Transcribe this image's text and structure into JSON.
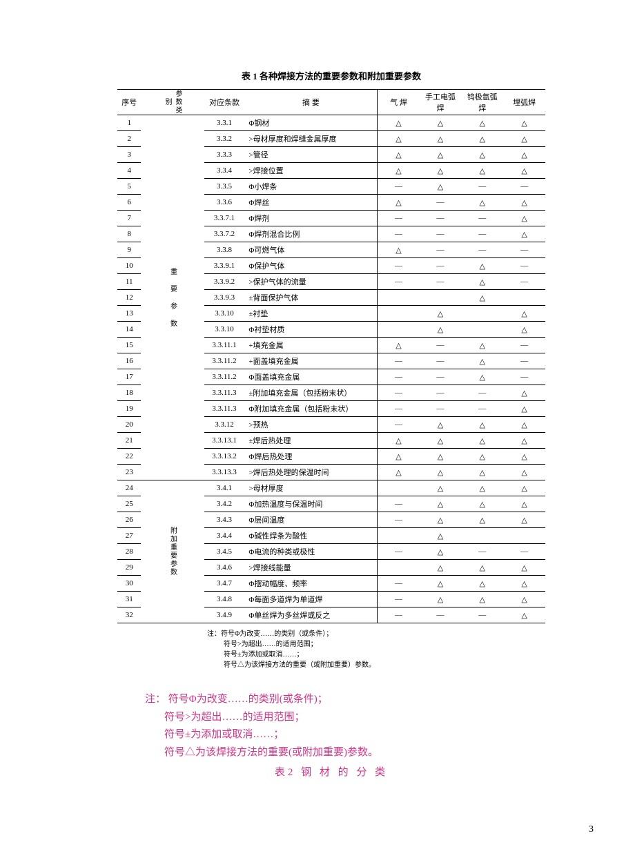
{
  "title": "表 1  各种焊接方法的重要参数和附加重要参数",
  "headers": {
    "seq": "序号",
    "cat": "参数类别",
    "ref": "对应条款",
    "desc": "摘    要",
    "m1": "气 焊",
    "m2": "手工电弧焊",
    "m3": "钨极氩弧焊",
    "m4": "埋弧焊"
  },
  "cat1": "重 要 参 数",
  "cat2": "附加重要参数",
  "rows": [
    {
      "n": "1",
      "r": "3.3.1",
      "d": "Φ钢材",
      "v": [
        "△",
        "△",
        "△",
        "△"
      ]
    },
    {
      "n": "2",
      "r": "3.3.2",
      "d": ">母材厚度和焊缝金属厚度",
      "v": [
        "△",
        "△",
        "△",
        "△"
      ]
    },
    {
      "n": "3",
      "r": "3.3.3",
      "d": ">管径",
      "v": [
        "△",
        "△",
        "△",
        "△"
      ]
    },
    {
      "n": "4",
      "r": "3.3.4",
      "d": ">焊接位置",
      "v": [
        "△",
        "△",
        "△",
        "△"
      ]
    },
    {
      "n": "5",
      "r": "3.3.5",
      "d": "Φ小焊条",
      "v": [
        "—",
        "△",
        "—",
        "—"
      ]
    },
    {
      "n": "6",
      "r": "3.3.6",
      "d": "Φ焊丝",
      "v": [
        "△",
        "—",
        "△",
        "△"
      ]
    },
    {
      "n": "7",
      "r": "3.3.7.1",
      "d": "Φ焊剂",
      "v": [
        "—",
        "—",
        "—",
        "△"
      ]
    },
    {
      "n": "8",
      "r": "3.3.7.2",
      "d": "Φ焊剂混合比例",
      "v": [
        "—",
        "—",
        "—",
        "△"
      ]
    },
    {
      "n": "9",
      "r": "3.3.8",
      "d": "Φ可燃气体",
      "v": [
        "△",
        "—",
        "—",
        "—"
      ]
    },
    {
      "n": "10",
      "r": "3.3.9.1",
      "d": "Φ保护气体",
      "v": [
        "—",
        "—",
        "△",
        "—"
      ]
    },
    {
      "n": "11",
      "r": "3.3.9.2",
      "d": ">保护气体的流量",
      "v": [
        "—",
        "—",
        "△",
        "—"
      ]
    },
    {
      "n": "12",
      "r": "3.3.9.3",
      "d": "±背面保护气体",
      "v": [
        "",
        "",
        "△",
        ""
      ]
    },
    {
      "n": "13",
      "r": "3.3.10",
      "d": "±衬垫",
      "v": [
        "",
        "△",
        "",
        "△"
      ]
    },
    {
      "n": "14",
      "r": "3.3.10",
      "d": "Φ衬垫材质",
      "v": [
        "",
        "△",
        "",
        "△"
      ]
    },
    {
      "n": "15",
      "r": "3.3.11.1",
      "d": "+填充金属",
      "v": [
        "△",
        "—",
        "△",
        "—"
      ]
    },
    {
      "n": "16",
      "r": "3.3.11.2",
      "d": "+面盖填充金属",
      "v": [
        "—",
        "—",
        "△",
        "—"
      ]
    },
    {
      "n": "17",
      "r": "3.3.11.2",
      "d": "Φ面盖填充金属",
      "v": [
        "—",
        "—",
        "△",
        "—"
      ]
    },
    {
      "n": "18",
      "r": "3.3.11.3",
      "d": "±附加填充金属（包括粉末状）",
      "v": [
        "—",
        "—",
        "—",
        "△"
      ]
    },
    {
      "n": "19",
      "r": "3.3.11.3",
      "d": "Φ附加填充金属（包括粉末状）",
      "v": [
        "—",
        "—",
        "—",
        "△"
      ]
    },
    {
      "n": "20",
      "r": "3.3.12",
      "d": ">预热",
      "v": [
        "—",
        "△",
        "△",
        "△"
      ]
    },
    {
      "n": "21",
      "r": "3.3.13.1",
      "d": "±焊后热处理",
      "v": [
        "△",
        "△",
        "△",
        "△"
      ]
    },
    {
      "n": "22",
      "r": "3.3.13.2",
      "d": "Φ焊后热处理",
      "v": [
        "△",
        "△",
        "△",
        "△"
      ]
    },
    {
      "n": "23",
      "r": "3.3.13.3",
      "d": ">焊后热处理的保温时间",
      "v": [
        "△",
        "△",
        "△",
        "△"
      ]
    },
    {
      "n": "24",
      "r": "3.4.1",
      "d": ">母材厚度",
      "v": [
        "",
        "△",
        "△",
        "△"
      ]
    },
    {
      "n": "25",
      "r": "3.4.2",
      "d": "Φ加热温度与保温时间",
      "v": [
        "—",
        "△",
        "△",
        "△"
      ]
    },
    {
      "n": "26",
      "r": "3.4.3",
      "d": "Φ层间温度",
      "v": [
        "—",
        "△",
        "△",
        "△"
      ]
    },
    {
      "n": "27",
      "r": "3.4.4",
      "d": "Φ碱性焊条为酸性",
      "v": [
        "",
        "△",
        "",
        ""
      ]
    },
    {
      "n": "28",
      "r": "3.4.5",
      "d": "Φ电流的种类或极性",
      "v": [
        "—",
        "△",
        "—",
        "—"
      ]
    },
    {
      "n": "29",
      "r": "3.4.6",
      "d": ">焊接线能量",
      "v": [
        "",
        "△",
        "△",
        "△"
      ]
    },
    {
      "n": "30",
      "r": "3.4.7",
      "d": "Φ摆动幅度、频率",
      "v": [
        "—",
        "△",
        "△",
        "△"
      ]
    },
    {
      "n": "31",
      "r": "3.4.8",
      "d": "Φ每面多道焊为单道焊",
      "v": [
        "—",
        "△",
        "△",
        "△"
      ]
    },
    {
      "n": "32",
      "r": "3.4.9",
      "d": "Φ单丝焊为多丝焊或反之",
      "v": [
        "—",
        "—",
        "—",
        "△"
      ]
    }
  ],
  "footnote": {
    "l1": "注：符号Φ为改变……的类别（或条件）；",
    "l2": "符号>为超出……的适用范围；",
    "l3": "符号±为添加或取消……；",
    "l4": "符号△为该焊接方法的重要（或附加重要）参数。"
  },
  "magenta": {
    "l1": "注： 符号Φ为改变……的类别(或条件)；",
    "l2": "符号>为超出……的适用范围；",
    "l3": "符号±为添加或取消……；",
    "l4": "符号△为该焊接方法的重要(或附加重要)参数。"
  },
  "table2title": "表2 钢 材 的 分 类",
  "pagenum": "3"
}
